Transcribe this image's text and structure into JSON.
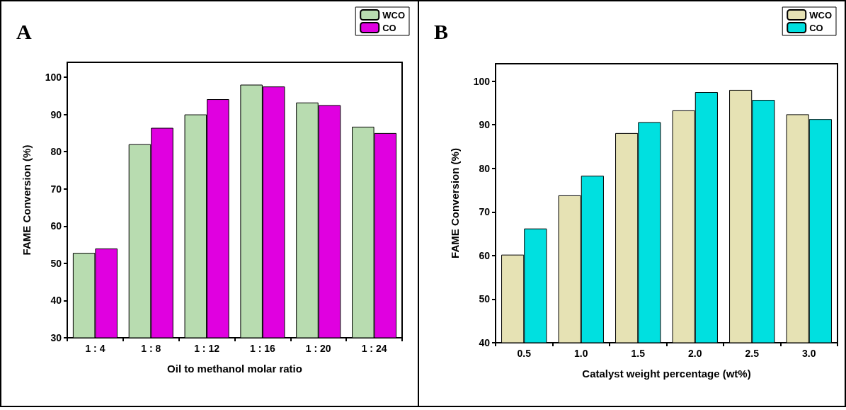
{
  "chart_data": [
    {
      "type": "bar",
      "title": "A",
      "xlabel": "Oil to methanol molar ratio",
      "ylabel": "FAME Conversion (%)",
      "categories": [
        "1 : 4",
        "1 : 8",
        "1 : 12",
        "1 : 16",
        "1 : 20",
        "1 : 24"
      ],
      "series": [
        {
          "name": "WCO",
          "color": "#b8dcb0",
          "values": [
            52.8,
            82,
            90,
            98,
            93.2,
            86.7
          ]
        },
        {
          "name": "CO",
          "color": "#e000e0",
          "values": [
            54,
            86.4,
            94.1,
            97.5,
            92.5,
            85
          ]
        }
      ],
      "ylim": [
        30,
        104
      ],
      "yticks": [
        30,
        40,
        50,
        60,
        70,
        80,
        90,
        100
      ],
      "legend": "top right",
      "grid": false
    },
    {
      "type": "bar",
      "title": "B",
      "xlabel": "Catalyst weight percentage (wt%)",
      "ylabel": "FAME Conversion (%)",
      "categories": [
        "0.5",
        "1.0",
        "1.5",
        "2.0",
        "2.5",
        "3.0"
      ],
      "series": [
        {
          "name": "WCO",
          "color": "#e6e2b4",
          "values": [
            60.2,
            73.8,
            88.1,
            93.3,
            98,
            92.4
          ]
        },
        {
          "name": "CO",
          "color": "#00e0e0",
          "values": [
            66.2,
            78.3,
            90.6,
            97.5,
            95.7,
            91.3
          ]
        }
      ],
      "ylim": [
        40,
        104
      ],
      "yticks": [
        40,
        50,
        60,
        70,
        80,
        90,
        100
      ],
      "legend": "top right",
      "grid": false
    }
  ]
}
